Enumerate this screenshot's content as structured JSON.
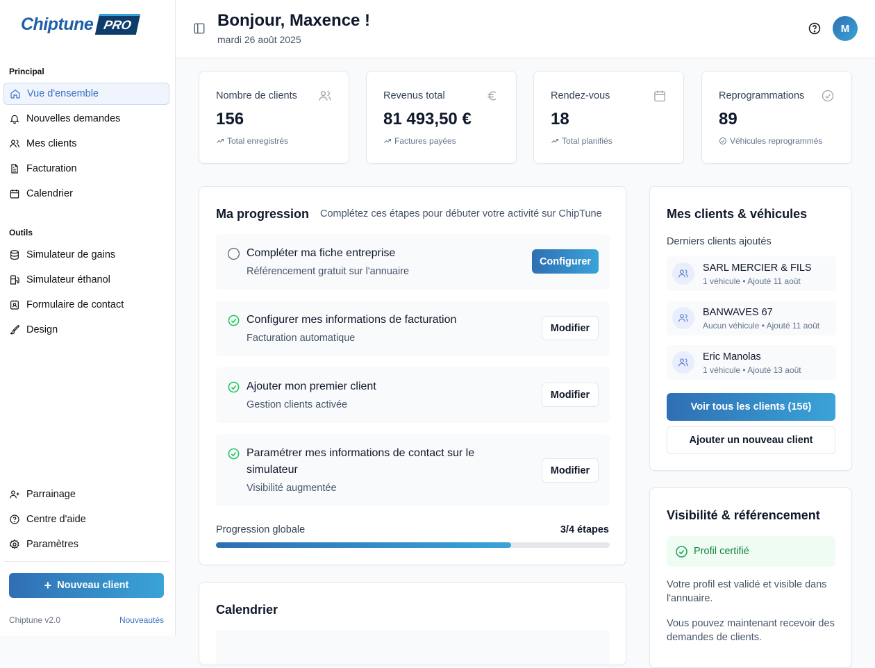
{
  "brand": {
    "name": "Chiptune",
    "badge": "PRO"
  },
  "sidebar": {
    "section_principal": "Principal",
    "principal": [
      {
        "label": "Vue d'ensemble",
        "icon": "home-icon"
      },
      {
        "label": "Nouvelles demandes",
        "icon": "bell-icon"
      },
      {
        "label": "Mes clients",
        "icon": "users-icon"
      },
      {
        "label": "Facturation",
        "icon": "file-icon"
      },
      {
        "label": "Calendrier",
        "icon": "calendar-icon"
      }
    ],
    "section_outils": "Outils",
    "outils": [
      {
        "label": "Simulateur de gains",
        "icon": "database-icon"
      },
      {
        "label": "Simulateur éthanol",
        "icon": "fuel-icon"
      },
      {
        "label": "Formulaire de contact",
        "icon": "contact-icon"
      },
      {
        "label": "Design",
        "icon": "brush-icon"
      }
    ],
    "bottom": [
      {
        "label": "Parrainage",
        "icon": "user-plus-icon"
      },
      {
        "label": "Centre d'aide",
        "icon": "help-icon"
      },
      {
        "label": "Paramètres",
        "icon": "gear-icon"
      }
    ],
    "new_client": "Nouveau client",
    "version": "Chiptune v2.0",
    "news": "Nouveautés"
  },
  "header": {
    "title": "Bonjour, Maxence !",
    "date": "mardi 26 août 2025",
    "avatar": "M"
  },
  "stats": [
    {
      "label": "Nombre de clients",
      "value": "156",
      "sub": "Total enregistrés"
    },
    {
      "label": "Revenus total",
      "value": "81 493,50 €",
      "sub": "Factures payées"
    },
    {
      "label": "Rendez-vous",
      "value": "18",
      "sub": "Total planifiés"
    },
    {
      "label": "Reprogrammations",
      "value": "89",
      "sub": "Véhicules reprogrammés"
    }
  ],
  "progress": {
    "title": "Ma progression",
    "subtitle": "Complétez ces étapes pour débuter votre activité sur ChipTune",
    "steps": [
      {
        "title": "Compléter ma fiche entreprise",
        "sub": "Référencement gratuit sur l'annuaire",
        "done": false,
        "action": "Configurer"
      },
      {
        "title": "Configurer mes informations de facturation",
        "sub": "Facturation automatique",
        "done": true,
        "action": "Modifier"
      },
      {
        "title": "Ajouter mon premier client",
        "sub": "Gestion clients activée",
        "done": true,
        "action": "Modifier"
      },
      {
        "title": "Paramétrer mes informations de contact sur le simulateur",
        "sub": "Visibilité augmentée",
        "done": true,
        "action": "Modifier"
      }
    ],
    "global_label": "Progression globale",
    "global_value": "3/4 étapes",
    "percent": 75
  },
  "clients": {
    "title": "Mes clients & véhicules",
    "subtitle": "Derniers clients ajoutés",
    "items": [
      {
        "name": "SARL MERCIER & FILS",
        "meta": "1 véhicule • Ajouté 11 août"
      },
      {
        "name": "BANWAVES 67",
        "meta": "Aucun véhicule • Ajouté 11 août"
      },
      {
        "name": "Eric Manolas",
        "meta": "1 véhicule • Ajouté 13 août"
      }
    ],
    "view_all": "Voir tous les clients (156)",
    "add": "Ajouter un nouveau client"
  },
  "visibility": {
    "title": "Visibilité & référencement",
    "badge": "Profil certifié",
    "p1": "Votre profil est validé et visible dans l'annuaire.",
    "p2": "Vous pouvez maintenant recevoir des demandes de clients."
  },
  "calendar": {
    "title": "Calendrier"
  },
  "colors": {
    "accent": "#2f6fb3",
    "success": "#22c55e",
    "active_bg": "#eff4fd"
  }
}
